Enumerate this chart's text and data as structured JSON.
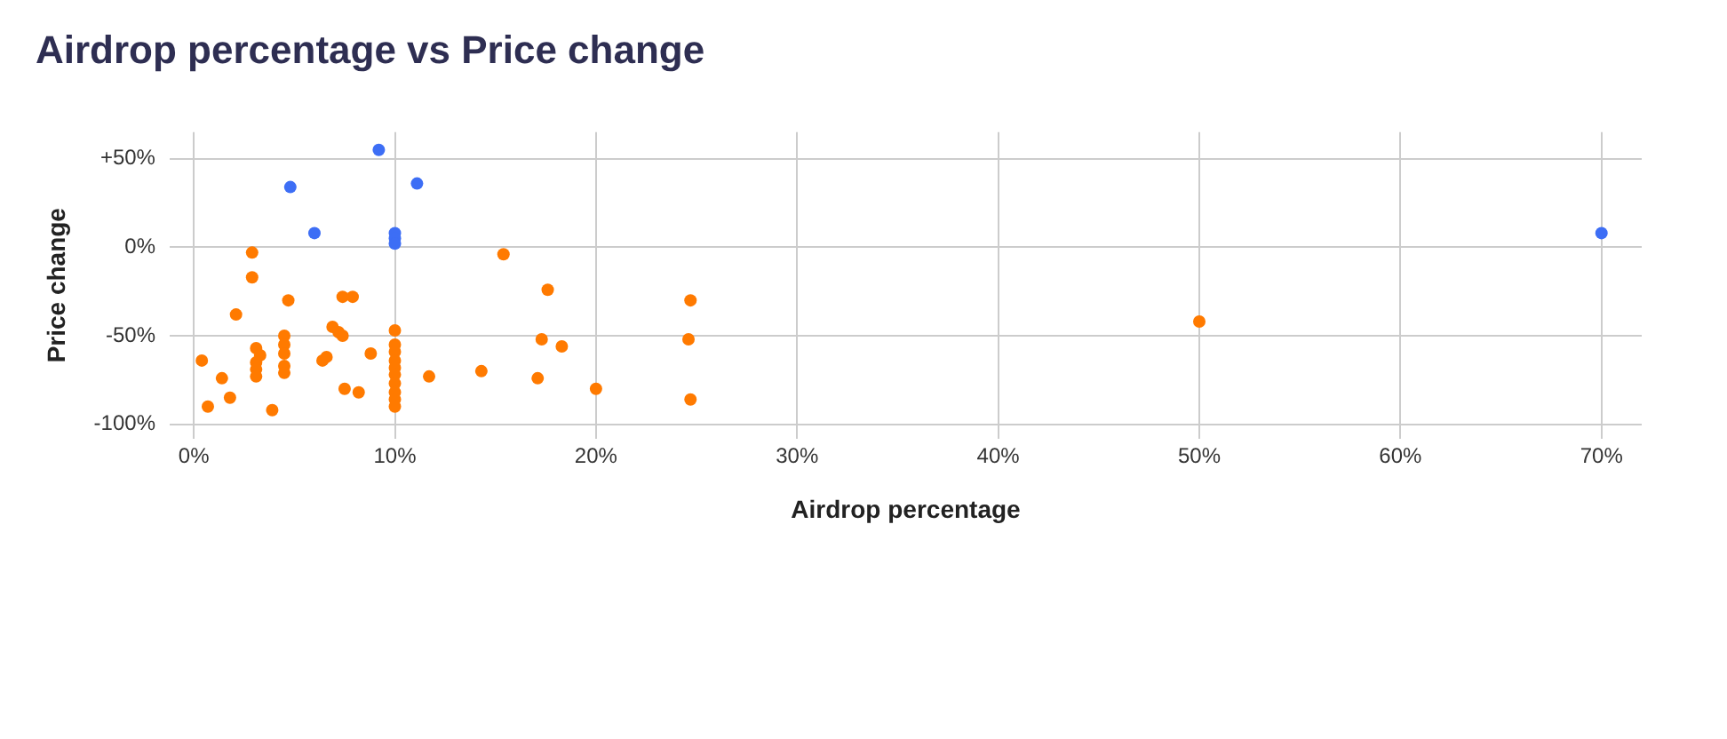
{
  "chart_data": {
    "type": "scatter",
    "title": "Airdrop percentage vs Price change",
    "xlabel": "Airdrop percentage",
    "ylabel": "Price change",
    "xlim": [
      -1.2,
      72
    ],
    "ylim": [
      -108,
      65
    ],
    "xticks": [
      {
        "value": 0,
        "label": "0%"
      },
      {
        "value": 10,
        "label": "10%"
      },
      {
        "value": 20,
        "label": "20%"
      },
      {
        "value": 30,
        "label": "30%"
      },
      {
        "value": 40,
        "label": "40%"
      },
      {
        "value": 50,
        "label": "50%"
      },
      {
        "value": 60,
        "label": "60%"
      },
      {
        "value": 70,
        "label": "70%"
      }
    ],
    "yticks": [
      {
        "value": -100,
        "label": "-100%"
      },
      {
        "value": -50,
        "label": "-50%"
      },
      {
        "value": 0,
        "label": "0%"
      },
      {
        "value": 50,
        "label": "+50%"
      }
    ],
    "grid": true,
    "legend": false,
    "marker": "circle",
    "series": [
      {
        "color": "#3d6ef5",
        "x": [
          9.2,
          4.8,
          11.1,
          6,
          10,
          10,
          10,
          70
        ],
        "values": [
          55,
          34,
          36,
          8,
          8,
          5,
          2,
          8
        ]
      },
      {
        "color": "#ff7a00",
        "x": [
          2.9,
          2.9,
          4.7,
          2.1,
          7.4,
          7.9,
          6.9,
          7.2,
          7.4,
          10,
          10,
          10,
          10,
          10,
          10,
          10,
          10,
          10,
          10,
          4.5,
          4.5,
          4.5,
          4.5,
          4.5,
          3.1,
          3.3,
          3.1,
          3.1,
          3.1,
          0.4,
          1.4,
          1.8,
          0.7,
          3.9,
          6.4,
          6.6,
          8.8,
          7.5,
          8.2,
          11.7,
          15.4,
          17.6,
          24.7,
          17.3,
          18.3,
          24.6,
          14.3,
          17.1,
          20,
          24.7,
          50
        ],
        "values": [
          -3,
          -17,
          -30,
          -38,
          -28,
          -28,
          -45,
          -48,
          -50,
          -47,
          -55,
          -59,
          -64,
          -68,
          -72,
          -77,
          -82,
          -86,
          -90,
          -50,
          -55,
          -60,
          -67,
          -71,
          -57,
          -61,
          -65,
          -69,
          -73,
          -64,
          -74,
          -85,
          -90,
          -92,
          -64,
          -62,
          -60,
          -80,
          -82,
          -73,
          -4,
          -24,
          -30,
          -52,
          -56,
          -52,
          -70,
          -74,
          -80,
          -86,
          -42
        ]
      }
    ]
  }
}
